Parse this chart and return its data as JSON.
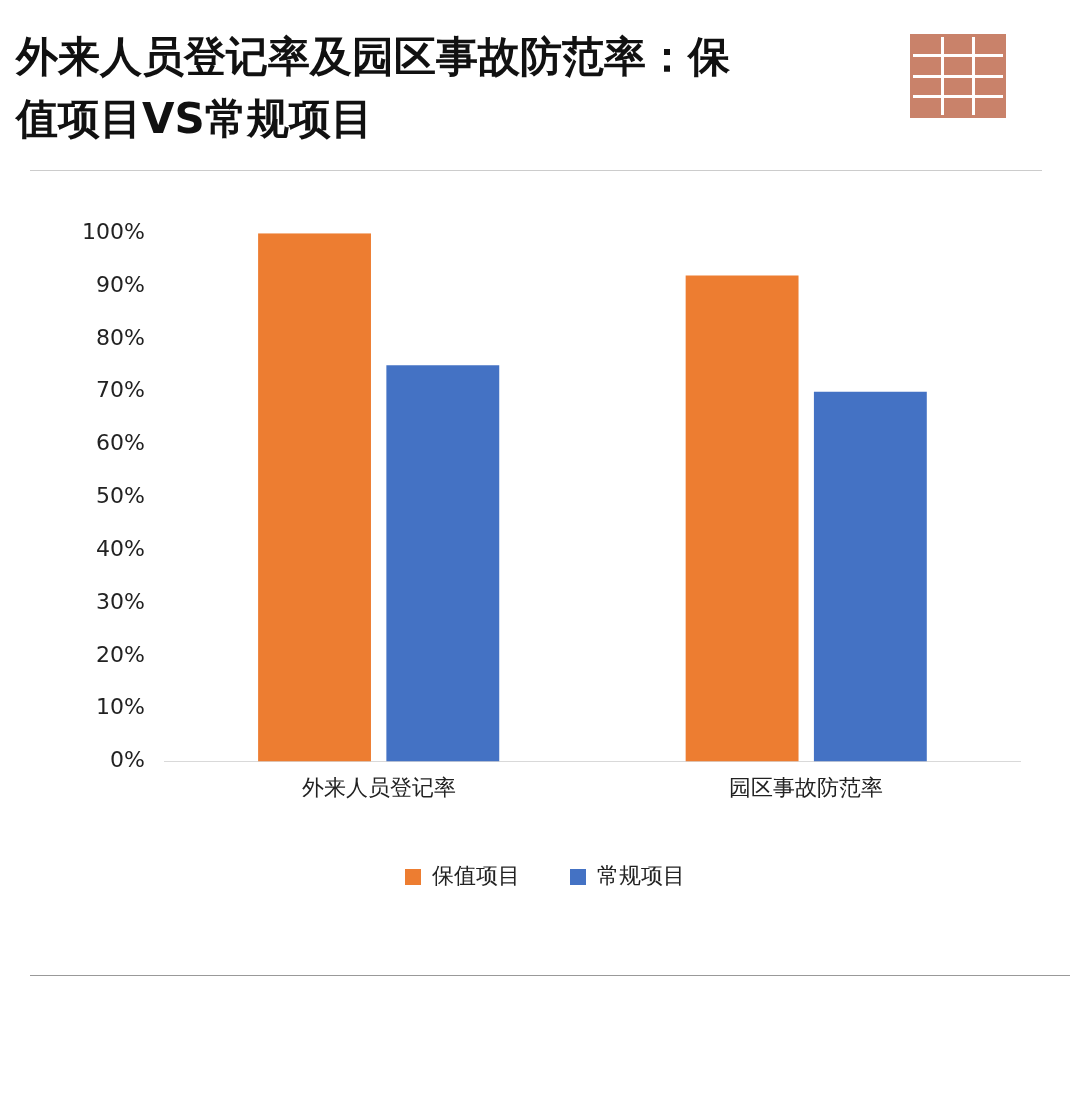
{
  "chart_data": {
    "type": "bar",
    "title": "外来人员登记率及园区事故防范率：保值项目VS常规项目",
    "categories": [
      "外来人员登记率",
      "园区事故防范率"
    ],
    "series": [
      {
        "name": "保值项目",
        "color": "#ed7d31",
        "values": [
          100,
          92
        ]
      },
      {
        "name": "常规项目",
        "color": "#4472c4",
        "values": [
          75,
          70
        ]
      }
    ],
    "ylim": [
      0,
      100
    ],
    "yticks": [
      {
        "value": 0,
        "label": "0%"
      },
      {
        "value": 10,
        "label": "10%"
      },
      {
        "value": 20,
        "label": "20%"
      },
      {
        "value": 30,
        "label": "30%"
      },
      {
        "value": 40,
        "label": "40%"
      },
      {
        "value": 50,
        "label": "50%"
      },
      {
        "value": 60,
        "label": "60%"
      },
      {
        "value": 70,
        "label": "70%"
      },
      {
        "value": 80,
        "label": "80%"
      },
      {
        "value": 90,
        "label": "90%"
      },
      {
        "value": 100,
        "label": "100%"
      }
    ],
    "grid": false,
    "legend": "bottom"
  }
}
